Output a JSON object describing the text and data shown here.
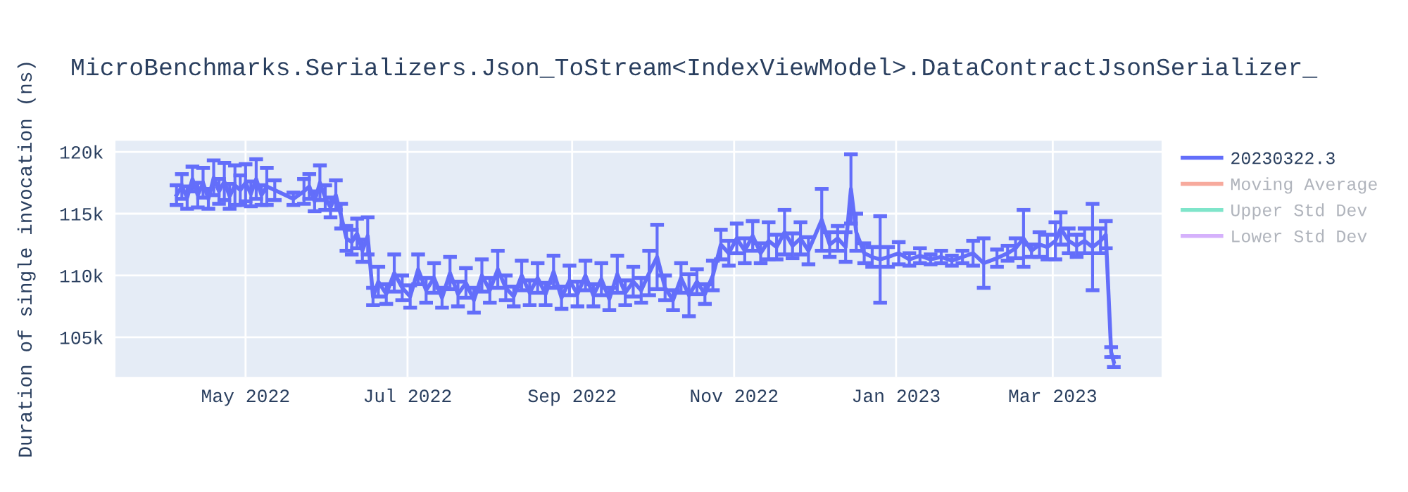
{
  "chart_data": {
    "type": "line",
    "title": "MicroBenchmarks.Serializers.Json_ToStream<IndexViewModel>.DataContractJsonSerializer_",
    "ylabel": "Duration of single invocation (ns)",
    "x": [
      "2022-04-05",
      "2022-04-07",
      "2022-04-09",
      "2022-04-11",
      "2022-04-13",
      "2022-04-15",
      "2022-04-17",
      "2022-04-19",
      "2022-04-21",
      "2022-04-23",
      "2022-04-25",
      "2022-04-27",
      "2022-04-29",
      "2022-05-01",
      "2022-05-03",
      "2022-05-05",
      "2022-05-07",
      "2022-05-09",
      "2022-05-12",
      "2022-05-19",
      "2022-05-23",
      "2022-05-25",
      "2022-05-27",
      "2022-05-29",
      "2022-05-31",
      "2022-06-02",
      "2022-06-04",
      "2022-06-06",
      "2022-06-08",
      "2022-06-10",
      "2022-06-12",
      "2022-06-14",
      "2022-06-16",
      "2022-06-18",
      "2022-06-20",
      "2022-06-23",
      "2022-06-26",
      "2022-06-29",
      "2022-07-02",
      "2022-07-05",
      "2022-07-08",
      "2022-07-11",
      "2022-07-14",
      "2022-07-17",
      "2022-07-20",
      "2022-07-23",
      "2022-07-26",
      "2022-07-29",
      "2022-08-01",
      "2022-08-04",
      "2022-08-07",
      "2022-08-10",
      "2022-08-13",
      "2022-08-16",
      "2022-08-19",
      "2022-08-22",
      "2022-08-25",
      "2022-08-28",
      "2022-08-31",
      "2022-09-03",
      "2022-09-06",
      "2022-09-09",
      "2022-09-12",
      "2022-09-15",
      "2022-09-18",
      "2022-09-21",
      "2022-09-24",
      "2022-09-27",
      "2022-09-30",
      "2022-10-03",
      "2022-10-06",
      "2022-10-09",
      "2022-10-12",
      "2022-10-15",
      "2022-10-18",
      "2022-10-21",
      "2022-10-24",
      "2022-10-27",
      "2022-10-30",
      "2022-11-02",
      "2022-11-05",
      "2022-11-08",
      "2022-11-11",
      "2022-11-14",
      "2022-11-17",
      "2022-11-20",
      "2022-11-23",
      "2022-11-26",
      "2022-11-29",
      "2022-12-04",
      "2022-12-07",
      "2022-12-10",
      "2022-12-13",
      "2022-12-15",
      "2022-12-17",
      "2022-12-20",
      "2022-12-23",
      "2022-12-26",
      "2022-12-29",
      "2023-01-02",
      "2023-01-06",
      "2023-01-10",
      "2023-01-14",
      "2023-01-18",
      "2023-01-22",
      "2023-01-26",
      "2023-01-30",
      "2023-02-03",
      "2023-02-08",
      "2023-02-12",
      "2023-02-15",
      "2023-02-18",
      "2023-02-21",
      "2023-02-24",
      "2023-02-27",
      "2023-03-02",
      "2023-03-04",
      "2023-03-07",
      "2023-03-10",
      "2023-03-13",
      "2023-03-16",
      "2023-03-19",
      "2023-03-21",
      "2023-03-23",
      "2023-03-24"
    ],
    "series": [
      {
        "name": "20230322.3",
        "color": "#636efa",
        "values": [
          116500,
          117200,
          116300,
          117800,
          116500,
          117500,
          116200,
          117900,
          116800,
          117600,
          116400,
          117300,
          116900,
          117500,
          116600,
          117800,
          116500,
          117200,
          116900,
          116200,
          116800,
          117200,
          116000,
          117500,
          116300,
          115500,
          116500,
          114800,
          113000,
          112700,
          113400,
          112000,
          113200,
          108300,
          109500,
          108500,
          110200,
          109000,
          108300,
          110500,
          108800,
          109800,
          108200,
          110200,
          108500,
          109400,
          108000,
          110000,
          108800,
          110500,
          109000,
          108300,
          110000,
          108600,
          109800,
          108500,
          110300,
          108200,
          109600,
          108500,
          110000,
          108400,
          109700,
          108100,
          110100,
          108600,
          109500,
          108800,
          110200,
          111500,
          109000,
          108000,
          109800,
          108400,
          109500,
          108500,
          110000,
          112500,
          111800,
          113000,
          112000,
          113200,
          111800,
          112800,
          112300,
          113500,
          112400,
          113000,
          112000,
          114500,
          112500,
          113000,
          112300,
          117000,
          113500,
          111800,
          111500,
          111300,
          111500,
          111800,
          111300,
          111600,
          111300,
          111500,
          111200,
          111500,
          111800,
          111000,
          111400,
          111800,
          112200,
          113000,
          112000,
          112500,
          112300,
          112800,
          113800,
          112800,
          112400,
          112800,
          112300,
          112800,
          113300,
          103800,
          103000
        ],
        "errors": [
          800,
          1000,
          900,
          1000,
          1000,
          1200,
          800,
          1400,
          1000,
          1500,
          1000,
          1600,
          1200,
          1500,
          1000,
          1600,
          800,
          1500,
          800,
          500,
          1000,
          1000,
          800,
          1400,
          1000,
          800,
          1200,
          1000,
          1000,
          1000,
          1200,
          900,
          1500,
          700,
          1200,
          800,
          1500,
          1000,
          900,
          1200,
          1000,
          1200,
          800,
          1300,
          1000,
          1200,
          1000,
          1300,
          1000,
          1500,
          1000,
          800,
          1200,
          1000,
          1200,
          900,
          1300,
          900,
          1200,
          1000,
          1200,
          900,
          1300,
          900,
          1500,
          1000,
          1200,
          1000,
          1800,
          2600,
          1000,
          800,
          1200,
          1700,
          1000,
          800,
          1200,
          1200,
          1000,
          1200,
          1000,
          1200,
          800,
          1500,
          1000,
          1800,
          1000,
          1300,
          1100,
          2500,
          1000,
          1000,
          1200,
          2800,
          1500,
          800,
          800,
          3500,
          800,
          900,
          500,
          600,
          400,
          500,
          400,
          500,
          1000,
          2000,
          700,
          600,
          800,
          2300,
          500,
          1000,
          1000,
          1500,
          1300,
          1000,
          900,
          1000,
          3500,
          1000,
          1100,
          400,
          400
        ]
      },
      {
        "name": "Moving Average",
        "color": "#ef553b",
        "values": [
          null,
          null,
          null,
          null,
          null,
          null,
          null,
          null,
          null,
          null,
          null,
          null,
          null,
          null,
          null,
          null,
          null,
          null,
          null,
          null,
          null,
          null,
          null,
          null,
          null,
          null,
          null,
          null,
          null,
          null,
          null,
          null,
          null,
          null,
          null,
          null,
          null,
          null,
          null,
          null,
          null,
          null,
          null,
          null,
          null,
          null,
          null,
          null,
          null,
          null,
          null,
          null,
          null,
          null,
          null,
          null,
          null,
          null,
          null,
          null,
          null,
          null,
          null,
          null,
          null,
          null,
          null,
          null,
          null,
          null,
          null,
          null,
          null,
          null,
          null,
          null,
          null,
          null,
          null,
          null,
          null,
          null,
          null,
          null,
          null,
          null,
          null,
          null,
          null,
          null,
          null,
          null,
          null,
          null,
          null,
          null,
          null,
          null,
          null,
          null,
          null,
          null,
          null,
          null,
          null,
          null,
          null,
          null,
          null,
          null,
          null,
          null,
          null,
          null,
          null,
          null,
          null,
          null,
          null,
          null,
          null,
          null,
          null,
          null,
          null
        ]
      },
      {
        "name": "Upper Std Dev",
        "color": "#00cc96",
        "values": [
          null,
          null,
          null,
          null,
          null,
          null,
          null,
          null,
          null,
          null,
          null,
          null,
          null,
          null,
          null,
          null,
          null,
          null,
          null,
          null,
          null,
          null,
          null,
          null,
          null,
          null,
          null,
          null,
          null,
          null,
          null,
          null,
          null,
          null,
          null,
          null,
          null,
          null,
          null,
          null,
          null,
          null,
          null,
          null,
          null,
          null,
          null,
          null,
          null,
          null,
          null,
          null,
          null,
          null,
          null,
          null,
          null,
          null,
          null,
          null,
          null,
          null,
          null,
          null,
          null,
          null,
          null,
          null,
          null,
          null,
          null,
          null,
          null,
          null,
          null,
          null,
          null,
          null,
          null,
          null,
          null,
          null,
          null,
          null,
          null,
          null,
          null,
          null,
          null,
          null,
          null,
          null,
          null,
          null,
          null,
          null,
          null,
          null,
          null,
          null,
          null,
          null,
          null,
          null,
          null,
          null,
          null,
          null,
          null,
          null,
          null,
          null,
          null,
          null,
          null,
          null,
          null,
          null,
          null,
          null,
          null,
          null,
          null,
          null,
          null
        ]
      },
      {
        "name": "Lower Std Dev",
        "color": "#ab63fa",
        "values": [
          null,
          null,
          null,
          null,
          null,
          null,
          null,
          null,
          null,
          null,
          null,
          null,
          null,
          null,
          null,
          null,
          null,
          null,
          null,
          null,
          null,
          null,
          null,
          null,
          null,
          null,
          null,
          null,
          null,
          null,
          null,
          null,
          null,
          null,
          null,
          null,
          null,
          null,
          null,
          null,
          null,
          null,
          null,
          null,
          null,
          null,
          null,
          null,
          null,
          null,
          null,
          null,
          null,
          null,
          null,
          null,
          null,
          null,
          null,
          null,
          null,
          null,
          null,
          null,
          null,
          null,
          null,
          null,
          null,
          null,
          null,
          null,
          null,
          null,
          null,
          null,
          null,
          null,
          null,
          null,
          null,
          null,
          null,
          null,
          null,
          null,
          null,
          null,
          null,
          null,
          null,
          null,
          null,
          null,
          null,
          null,
          null,
          null,
          null,
          null,
          null,
          null,
          null,
          null,
          null,
          null,
          null,
          null,
          null,
          null,
          null,
          null,
          null,
          null,
          null,
          null,
          null,
          null,
          null,
          null,
          null,
          null,
          null,
          null,
          null
        ]
      }
    ],
    "xlim": [
      "2022-03-13",
      "2023-04-11"
    ],
    "xticks": [
      {
        "value": "2022-05-01",
        "label": "May 2022"
      },
      {
        "value": "2022-07-01",
        "label": "Jul 2022"
      },
      {
        "value": "2022-09-01",
        "label": "Sep 2022"
      },
      {
        "value": "2022-11-01",
        "label": "Nov 2022"
      },
      {
        "value": "2023-01-01",
        "label": "Jan 2023"
      },
      {
        "value": "2023-03-01",
        "label": "Mar 2023"
      }
    ],
    "ylim": [
      101800,
      120900
    ],
    "yticks": [
      {
        "value": 105000,
        "label": "105k"
      },
      {
        "value": 110000,
        "label": "110k"
      },
      {
        "value": 115000,
        "label": "115k"
      },
      {
        "value": 120000,
        "label": "120k"
      }
    ],
    "grid": true,
    "legend": "top right",
    "marker": "none",
    "line_style": "solid"
  }
}
